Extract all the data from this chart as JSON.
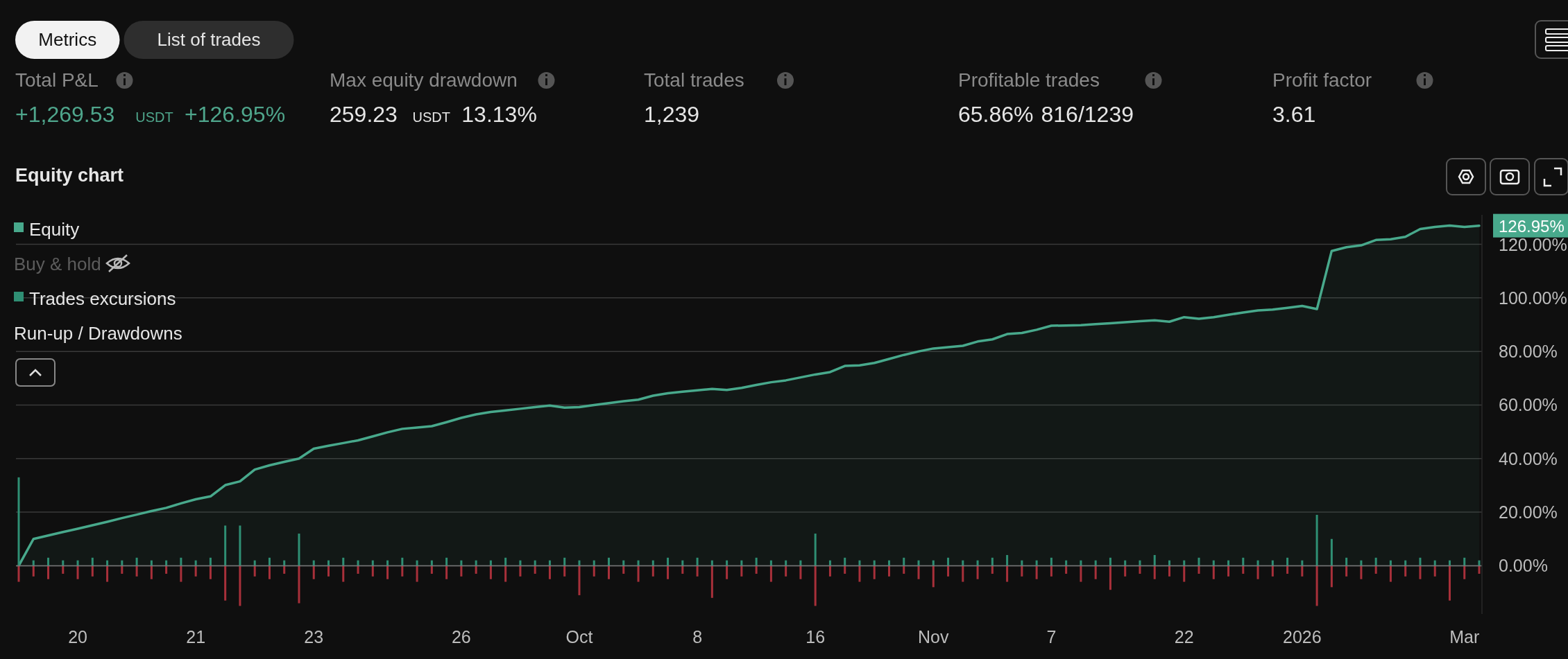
{
  "chart_data": [
    {
      "type": "other",
      "annotations": [
        "Metrics",
        "List of trades"
      ]
    },
    {
      "type": "other",
      "title": "Total P&L",
      "annotations": [
        "+1,269.53",
        "USDT",
        "+126.95%"
      ],
      "color": "#4fa68c"
    },
    {
      "type": "other",
      "title": "Max equity drawdown",
      "annotations": [
        "259.23",
        "USDT",
        "13.13%"
      ],
      "color": "#e6e6e6"
    },
    {
      "type": "other",
      "title": "Total trades",
      "annotations": [
        "1,239"
      ],
      "color": "#e6e6e6"
    },
    {
      "type": "other",
      "title": "Profitable trades",
      "annotations": [
        "65.86%",
        "816/1239"
      ],
      "color": "#e6e6e6"
    },
    {
      "type": "other",
      "title": "Profit factor",
      "annotations": [
        "3.61"
      ],
      "color": "#e6e6e6"
    },
    {
      "type": "area",
      "title": "Equity chart",
      "ylim": [
        -18,
        131
      ],
      "categories": [
        null,
        null,
        null,
        null,
        "20",
        null,
        null,
        null,
        null,
        null,
        null,
        null,
        "21",
        null,
        null,
        null,
        null,
        null,
        null,
        null,
        "23",
        null,
        null,
        null,
        null,
        null,
        null,
        null,
        null,
        null,
        "26",
        null,
        null,
        null,
        null,
        null,
        null,
        null,
        "Oct",
        null,
        null,
        null,
        null,
        null,
        null,
        null,
        "8",
        null,
        null,
        null,
        null,
        null,
        null,
        null,
        "16",
        null,
        null,
        null,
        null,
        null,
        null,
        null,
        "Nov",
        null,
        null,
        null,
        null,
        null,
        null,
        null,
        "7",
        null,
        null,
        null,
        null,
        null,
        null,
        null,
        null,
        "22",
        null,
        null,
        null,
        null,
        null,
        null,
        null,
        "2026",
        null,
        null,
        null,
        null,
        null,
        null,
        null,
        null,
        null,
        null,
        "Mar",
        null
      ],
      "yticks": [
        {
          "value": 0,
          "label": "0.00%"
        },
        {
          "value": 20,
          "label": "20.00%"
        },
        {
          "value": 40,
          "label": "40.00%"
        },
        {
          "value": 60,
          "label": "60.00%"
        },
        {
          "value": 80,
          "label": "80.00%"
        },
        {
          "value": 100,
          "label": "100.00%"
        },
        {
          "value": 120,
          "label": "120.00%"
        }
      ],
      "grid": "y",
      "legend": "top left",
      "series": [
        {
          "name": "Equity",
          "type": "area",
          "color": "#48a98c",
          "values": [
            0,
            10,
            11.3,
            12.6,
            13.8,
            15.1,
            16.4,
            17.8,
            19.1,
            20.4,
            21.6,
            23.3,
            24.8,
            25.9,
            30.1,
            31.5,
            35.9,
            37.5,
            38.8,
            40,
            43.7,
            44.8,
            45.8,
            46.8,
            48.3,
            49.8,
            51.1,
            51.6,
            52.1,
            53.6,
            55.2,
            56.5,
            57.4,
            58,
            58.6,
            59.2,
            59.8,
            59,
            59.2,
            60,
            60.7,
            61.4,
            62,
            63.5,
            64.4,
            65,
            65.5,
            66,
            65.6,
            66.4,
            67.5,
            68.5,
            69.2,
            70.3,
            71.4,
            72.3,
            74.6,
            74.8,
            75.7,
            77.2,
            78.7,
            80,
            81.1,
            81.6,
            82.1,
            83.7,
            84.5,
            86.5,
            86.9,
            88.1,
            89.6,
            89.7,
            89.8,
            90.2,
            90.5,
            90.9,
            91.3,
            91.6,
            91.1,
            92.8,
            92.2,
            92.8,
            93.7,
            94.5,
            95.3,
            95.6,
            96.3,
            97,
            95.8,
            117.5,
            118.9,
            119.6,
            121.6,
            121.9,
            122.8,
            125.7,
            126.5,
            127,
            126.5,
            126.95
          ]
        },
        {
          "name": "Trades excursions",
          "type": "bar",
          "color": "#2f8f74",
          "values": [
            33,
            2,
            3,
            2,
            2,
            3,
            2,
            2,
            3,
            2,
            2,
            3,
            2,
            3,
            15,
            15,
            2,
            3,
            2,
            12,
            2,
            2,
            3,
            2,
            2,
            2,
            3,
            2,
            2,
            3,
            2,
            2,
            2,
            3,
            2,
            2,
            2,
            3,
            2,
            2,
            3,
            2,
            2,
            2,
            3,
            2,
            3,
            2,
            2,
            2,
            3,
            2,
            2,
            2,
            12,
            2,
            3,
            2,
            2,
            2,
            3,
            2,
            2,
            3,
            2,
            2,
            3,
            4,
            2,
            2,
            3,
            2,
            2,
            2,
            3,
            2,
            2,
            4,
            2,
            2,
            3,
            2,
            2,
            3,
            2,
            2,
            3,
            2,
            19,
            10,
            3,
            2,
            3,
            2,
            2,
            3,
            2,
            2,
            3,
            2
          ]
        },
        {
          "type": "bar",
          "color": "#a8303a",
          "values": [
            -6,
            -4,
            -5,
            -3,
            -5,
            -4,
            -6,
            -3,
            -4,
            -5,
            -3,
            -6,
            -4,
            -5,
            -13,
            -15,
            -4,
            -5,
            -3,
            -14,
            -5,
            -4,
            -6,
            -3,
            -4,
            -5,
            -4,
            -6,
            -3,
            -5,
            -4,
            -3,
            -5,
            -6,
            -4,
            -3,
            -5,
            -4,
            -11,
            -4,
            -5,
            -3,
            -6,
            -4,
            -5,
            -3,
            -4,
            -12,
            -5,
            -4,
            -3,
            -6,
            -4,
            -5,
            -15,
            -4,
            -3,
            -6,
            -5,
            -4,
            -3,
            -5,
            -8,
            -4,
            -6,
            -5,
            -3,
            -6,
            -4,
            -5,
            -4,
            -3,
            -6,
            -5,
            -9,
            -4,
            -3,
            -5,
            -4,
            -6,
            -3,
            -5,
            -4,
            -3,
            -5,
            -4,
            -3,
            -4,
            -15,
            -8,
            -4,
            -5,
            -3,
            -6,
            -4,
            -5,
            -4,
            -13,
            -5,
            -3
          ]
        }
      ],
      "stacked": true,
      "annotations": [
        "126.95%",
        "Buy & hold",
        "Run-up / Drawdowns"
      ]
    }
  ]
}
